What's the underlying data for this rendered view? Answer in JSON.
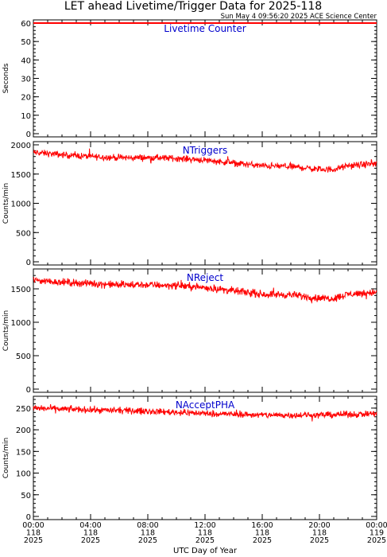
{
  "title": "LET ahead Livetime/Trigger Data for 2025-118",
  "subtitle": "Sun May  4 09:56:20 2025 ACE Science Center",
  "xlabel": "UTC Day of Year",
  "colors": {
    "trace": "#ff0000",
    "label": "#0000cc",
    "axis": "#000000"
  },
  "chart_data": {
    "type": "line",
    "x_ticks": [
      {
        "time": "00:00",
        "doy": "118",
        "year": "2025"
      },
      {
        "time": "04:00",
        "doy": "118",
        "year": "2025"
      },
      {
        "time": "08:00",
        "doy": "118",
        "year": "2025"
      },
      {
        "time": "12:00",
        "doy": "118",
        "year": "2025"
      },
      {
        "time": "16:00",
        "doy": "118",
        "year": "2025"
      },
      {
        "time": "20:00",
        "doy": "118",
        "year": "2025"
      },
      {
        "time": "00:00",
        "doy": "119",
        "year": "2025"
      }
    ],
    "panels": [
      {
        "series_name": "Livetime Counter",
        "ylabel": "Seconds",
        "ylim": [
          0,
          60
        ],
        "yticks": [
          0,
          10,
          20,
          30,
          40,
          50,
          60
        ],
        "hours": [
          0,
          24
        ],
        "trend": [
          60,
          60
        ],
        "noise": 0
      },
      {
        "series_name": "NTriggers",
        "ylabel": "Counts/min",
        "ylim": [
          0,
          2000
        ],
        "yticks": [
          0,
          500,
          1000,
          1500,
          2000
        ],
        "hours": [
          0,
          2,
          4,
          6,
          8,
          10,
          12,
          14,
          16,
          18,
          20,
          21,
          22,
          24
        ],
        "trend": [
          1870,
          1830,
          1800,
          1780,
          1780,
          1770,
          1740,
          1690,
          1640,
          1630,
          1580,
          1580,
          1640,
          1680
        ],
        "noise": 45
      },
      {
        "series_name": "NReject",
        "ylabel": "Counts/min",
        "ylim": [
          0,
          1750
        ],
        "yticks": [
          0,
          500,
          1000,
          1500
        ],
        "hours": [
          0,
          2,
          4,
          6,
          8,
          10,
          12,
          14,
          16,
          18,
          20,
          21,
          22,
          24
        ],
        "trend": [
          1630,
          1600,
          1580,
          1560,
          1560,
          1550,
          1520,
          1470,
          1420,
          1410,
          1360,
          1360,
          1420,
          1450
        ],
        "noise": 45
      },
      {
        "series_name": "NAcceptPHA",
        "ylabel": "Counts/min",
        "ylim": [
          0,
          270
        ],
        "yticks": [
          0,
          50,
          100,
          150,
          200,
          250
        ],
        "hours": [
          0,
          4,
          8,
          12,
          16,
          20,
          24
        ],
        "trend": [
          250,
          246,
          243,
          238,
          234,
          234,
          237
        ],
        "noise": 6
      }
    ]
  }
}
